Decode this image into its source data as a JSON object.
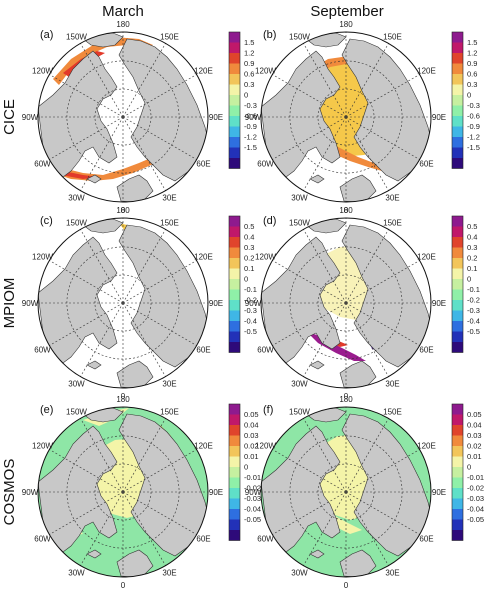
{
  "columns": [
    "March",
    "September"
  ],
  "rows": [
    {
      "model": "CICE",
      "ticks": [
        "1.5",
        "1.2",
        "0.9",
        "0.6",
        "0.3",
        "0",
        "-0.3",
        "-0.6",
        "-0.9",
        "-1.2",
        "-1.5"
      ]
    },
    {
      "model": "MPIOM",
      "ticks": [
        "0.5",
        "0.4",
        "0.3",
        "0.2",
        "0.1",
        "0",
        "-0.1",
        "-0.2",
        "-0.3",
        "-0.4",
        "-0.5"
      ]
    },
    {
      "model": "COSMOS",
      "ticks": [
        "0.05",
        "0.04",
        "0.03",
        "0.02",
        "0.01",
        "0",
        "-0.01",
        "-0.02",
        "-0.03",
        "-0.04",
        "-0.05"
      ]
    }
  ],
  "panels": [
    {
      "label": "(a)",
      "row": 0,
      "col": 0
    },
    {
      "label": "(b)",
      "row": 0,
      "col": 1
    },
    {
      "label": "(c)",
      "row": 1,
      "col": 0
    },
    {
      "label": "(d)",
      "row": 1,
      "col": 1
    },
    {
      "label": "(e)",
      "row": 2,
      "col": 0
    },
    {
      "label": "(f)",
      "row": 2,
      "col": 1
    }
  ],
  "longitude_labels": [
    "180",
    "150E",
    "120E",
    "90E",
    "60E",
    "30E",
    "0",
    "30W",
    "60W",
    "90W",
    "120W",
    "150W"
  ],
  "colorbar_colors": [
    "#ffffff",
    "#2e0a7a",
    "#2231b8",
    "#2e6fe0",
    "#3fb6e6",
    "#5fe0c8",
    "#8ff0a8",
    "#c6f0a0",
    "#f4f4a8",
    "#f2c55a",
    "#f08a3c",
    "#e0442c",
    "#c0186a",
    "#8e1a8e",
    "#ffffff"
  ],
  "colors": {
    "land": "#c8c8c8",
    "ocean": "#ffffff",
    "cice_lo": "#f5c84a",
    "cice_mid": "#f08a3c",
    "cice_hi": "#e23a2a",
    "cice_max": "#c0186a",
    "mpiom_hi": "#9a1c8e",
    "cosmos_green": "#8ee6a6",
    "cosmos_yellow": "#f4f4a8"
  }
}
